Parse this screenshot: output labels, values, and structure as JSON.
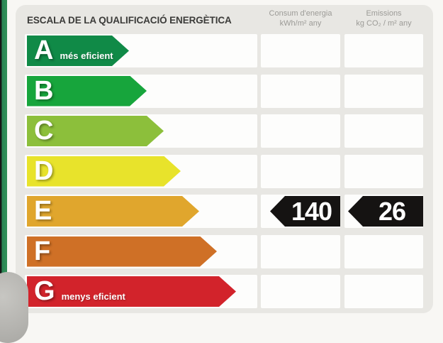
{
  "header": {
    "title": "ESCALA DE LA QUALIFICACIÓ ENERGÈTICA",
    "columns": [
      {
        "name": "Consum d'energia",
        "unit": "kWh/m² any"
      },
      {
        "name": "Emissions",
        "unit": "kg CO₂ / m² any"
      }
    ]
  },
  "scale": {
    "rows": [
      {
        "letter": "A",
        "note": "més eficient",
        "color": "#108a47",
        "arrow_width": 144
      },
      {
        "letter": "B",
        "note": "",
        "color": "#17a53c",
        "arrow_width": 169
      },
      {
        "letter": "C",
        "note": "",
        "color": "#8cbf3b",
        "arrow_width": 193
      },
      {
        "letter": "D",
        "note": "",
        "color": "#e8e32b",
        "arrow_width": 217
      },
      {
        "letter": "E",
        "note": "",
        "color": "#e0a62d",
        "arrow_width": 243
      },
      {
        "letter": "F",
        "note": "",
        "color": "#cf7026",
        "arrow_width": 268
      },
      {
        "letter": "G",
        "note": "menys eficient",
        "color": "#d2232b",
        "arrow_width": 295
      }
    ]
  },
  "rating": {
    "row_letter": "E",
    "consumption_value": "140",
    "emissions_value": "26",
    "badge_color": "#151312"
  }
}
